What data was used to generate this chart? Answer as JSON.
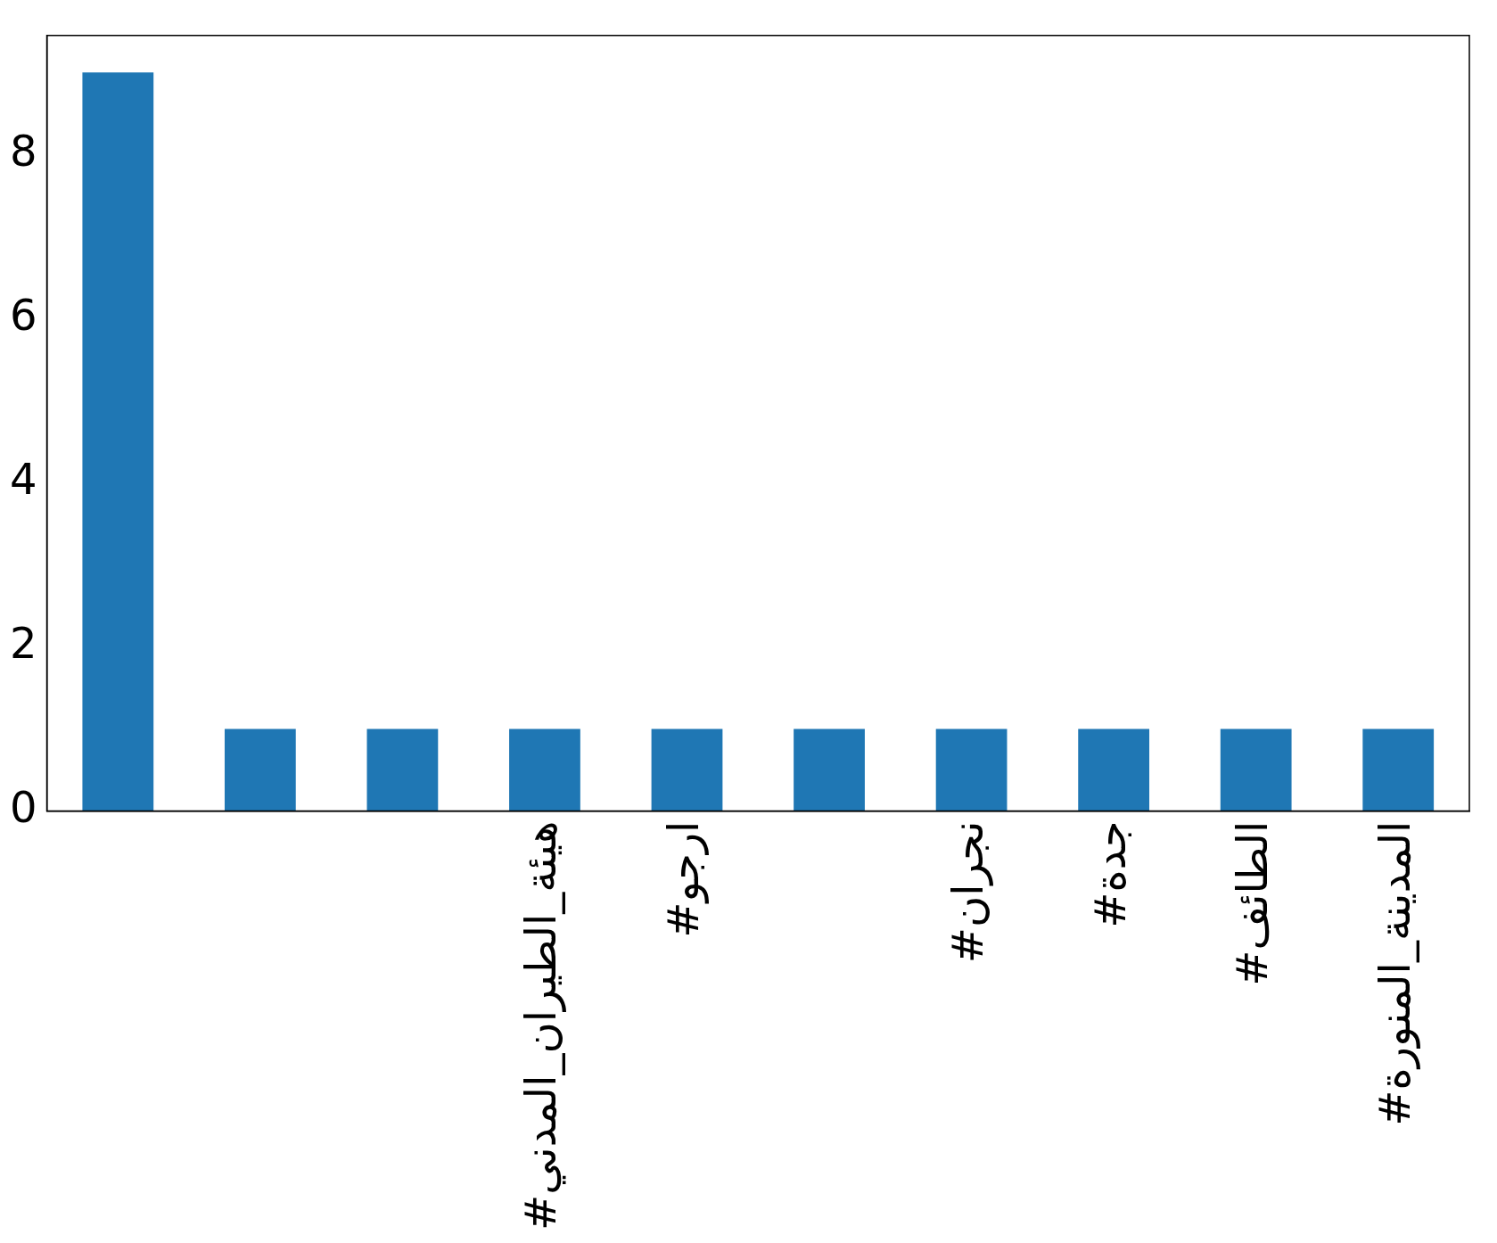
{
  "chart_data": {
    "type": "bar",
    "categories": [
      null,
      null,
      null,
      "#هيئة_الطيران_المدني",
      "#ارجو",
      null,
      "#نجران",
      "#جدة",
      "#الطائف",
      "#المدينة_المنورة"
    ],
    "values": [
      9,
      1,
      1,
      1,
      1,
      1,
      1,
      1,
      1,
      1
    ],
    "color": "#1f77b4",
    "ylim": [
      0,
      9.45
    ],
    "yticks": [
      0,
      2,
      4,
      6,
      8
    ],
    "grid": false,
    "legend": false
  }
}
